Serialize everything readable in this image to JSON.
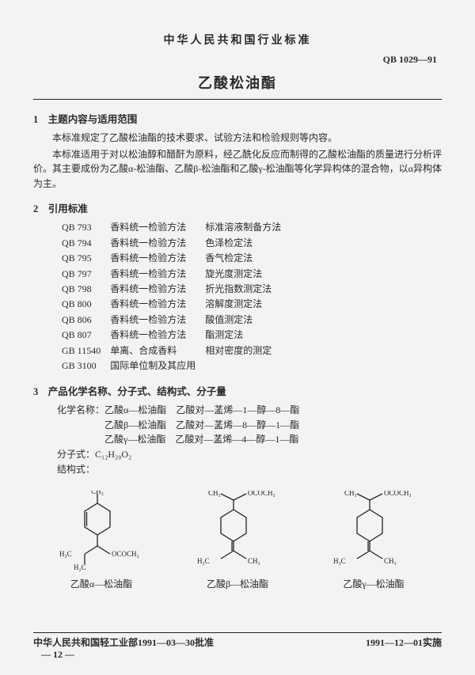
{
  "header": {
    "org": "中华人民共和国行业标准",
    "std_code": "QB 1029—91",
    "title": "乙酸松油酯"
  },
  "s1": {
    "head": "1　主题内容与适用范围",
    "p1": "本标准规定了乙酸松油酯的技术要求、试验方法和检验规则等内容。",
    "p2": "本标准适用于对以松油醇和醋酐为原料，经乙酰化反应而制得的乙酸松油酯的质量进行分析评价。其主要成份为乙酸α-松油酯、乙酸β-松油酯和乙酸γ-松油酯等化学异构体的混合物，以α异构体为主。"
  },
  "s2": {
    "head": "2　引用标准",
    "refs": [
      {
        "code": "QB 793",
        "name": "香料统一检验方法",
        "method": "标准溶液制备方法"
      },
      {
        "code": "QB 794",
        "name": "香料统一检验方法",
        "method": "色泽检定法"
      },
      {
        "code": "QB 795",
        "name": "香料统一检验方法",
        "method": "香气检定法"
      },
      {
        "code": "QB 797",
        "name": "香料统一检验方法",
        "method": "旋光度测定法"
      },
      {
        "code": "QB 798",
        "name": "香料统一检验方法",
        "method": "折光指数测定法"
      },
      {
        "code": "QB 800",
        "name": "香料统一检验方法",
        "method": "溶解度测定法"
      },
      {
        "code": "QB 806",
        "name": "香料统一检验方法",
        "method": "酸值测定法"
      },
      {
        "code": "QB 807",
        "name": "香料统一检验方法",
        "method": "酯测定法"
      },
      {
        "code": "GB 11540",
        "name": "单离、合成香料",
        "method": "相对密度的测定"
      },
      {
        "code": "GB 3100",
        "name": "国际单位制及其应用",
        "method": ""
      }
    ]
  },
  "s3": {
    "head": "3　产品化学名称、分子式、结构式、分子量",
    "chem_label": "化学名称：",
    "chem": [
      {
        "a": "乙酸α—松油酯",
        "b": "乙酸对—䓝烯—1—醇—8—酯"
      },
      {
        "a": "乙酸β—松油酯",
        "b": "乙酸对—䓝烯—8—醇—1—酯"
      },
      {
        "a": "乙酸γ—松油酯",
        "b": "乙酸对—䓝烯—4—醇—1—酯"
      }
    ],
    "formula_label": "分子式：",
    "formula": "C₁₂H₂₀O₂",
    "struct_label": "结构式：",
    "struct_names": [
      "乙酸α—松油酯",
      "乙酸β—松油酯",
      "乙酸γ—松油酯"
    ]
  },
  "footer": {
    "left": "中华人民共和国轻工业部1991—03—30批准",
    "right": "1991—12—01实施",
    "page": "— 12 —"
  }
}
